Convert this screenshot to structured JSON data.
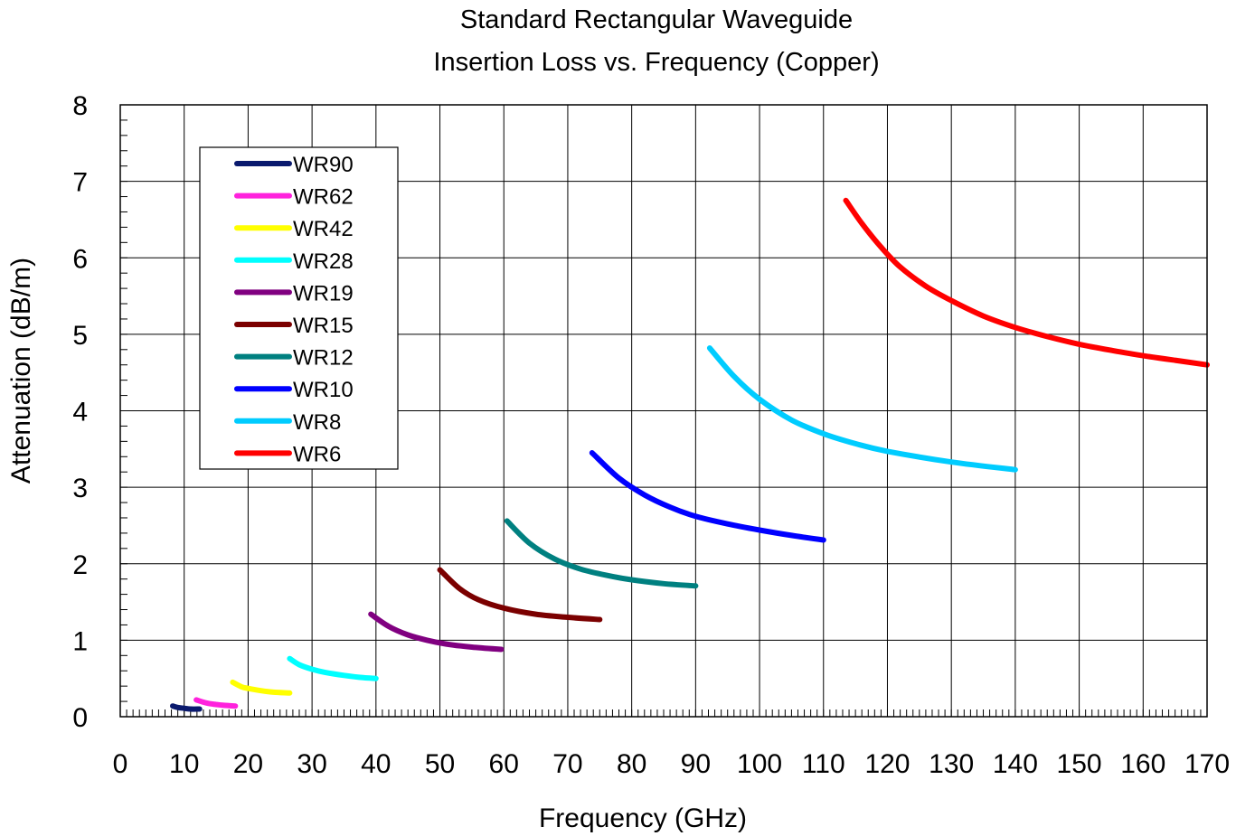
{
  "chart_data": {
    "type": "line",
    "title": "Standard Rectangular Waveguide",
    "subtitle": "Insertion Loss vs. Frequency (Copper)",
    "xlabel": "Frequency (GHz)",
    "ylabel": "Attenuation (dB/m)",
    "xlim": [
      0,
      170
    ],
    "ylim": [
      0,
      8
    ],
    "x_major_ticks": [
      "0",
      "10",
      "20",
      "30",
      "40",
      "50",
      "60",
      "70",
      "80",
      "90",
      "100",
      "110",
      "120",
      "130",
      "140",
      "150",
      "160",
      "170"
    ],
    "y_major_ticks": [
      "0",
      "1",
      "2",
      "3",
      "4",
      "5",
      "6",
      "7",
      "8"
    ],
    "x_minor_step": 1,
    "y_minor_step": 0.2,
    "grid": true,
    "legend_position": "top-left",
    "series": [
      {
        "name": "WR90",
        "color": "#0a1a6e",
        "x": [
          8.2,
          9,
          10,
          11,
          12.4
        ],
        "y": [
          0.14,
          0.12,
          0.11,
          0.1,
          0.1
        ]
      },
      {
        "name": "WR62",
        "color": "#ff22dd",
        "x": [
          11.9,
          13,
          14,
          15,
          16,
          18
        ],
        "y": [
          0.22,
          0.19,
          0.17,
          0.16,
          0.15,
          0.14
        ]
      },
      {
        "name": "WR42",
        "color": "#ffff00",
        "x": [
          17.6,
          19,
          20,
          22,
          24,
          26.5
        ],
        "y": [
          0.45,
          0.39,
          0.37,
          0.34,
          0.32,
          0.31
        ]
      },
      {
        "name": "WR28",
        "color": "#00ffff",
        "x": [
          26.5,
          28,
          30,
          32,
          35,
          38,
          40
        ],
        "y": [
          0.76,
          0.68,
          0.62,
          0.58,
          0.54,
          0.51,
          0.5
        ]
      },
      {
        "name": "WR19",
        "color": "#800080",
        "x": [
          39.2,
          42,
          45,
          48,
          51,
          55,
          59.6
        ],
        "y": [
          1.34,
          1.18,
          1.07,
          1.0,
          0.95,
          0.91,
          0.88
        ]
      },
      {
        "name": "WR15",
        "color": "#7b0000",
        "x": [
          50,
          53,
          56,
          60,
          65,
          70,
          75
        ],
        "y": [
          1.92,
          1.68,
          1.53,
          1.42,
          1.34,
          1.3,
          1.27
        ]
      },
      {
        "name": "WR12",
        "color": "#008080",
        "x": [
          60.5,
          64,
          68,
          72,
          76,
          80,
          85,
          90
        ],
        "y": [
          2.56,
          2.27,
          2.06,
          1.93,
          1.85,
          1.79,
          1.74,
          1.71
        ]
      },
      {
        "name": "WR10",
        "color": "#0000ff",
        "x": [
          73.8,
          78,
          82,
          86,
          90,
          95,
          100,
          105,
          110
        ],
        "y": [
          3.45,
          3.12,
          2.9,
          2.74,
          2.62,
          2.52,
          2.44,
          2.37,
          2.31
        ]
      },
      {
        "name": "WR8",
        "color": "#00ccff",
        "x": [
          92.2,
          96,
          100,
          105,
          110,
          115,
          120,
          130,
          140
        ],
        "y": [
          4.82,
          4.45,
          4.15,
          3.88,
          3.7,
          3.57,
          3.47,
          3.33,
          3.23
        ]
      },
      {
        "name": "WR6",
        "color": "#ff0000",
        "x": [
          113.5,
          116,
          119,
          122,
          126,
          130,
          135,
          140,
          145,
          150,
          155,
          160,
          165,
          170
        ],
        "y": [
          6.75,
          6.45,
          6.14,
          5.88,
          5.63,
          5.44,
          5.24,
          5.09,
          4.97,
          4.87,
          4.79,
          4.72,
          4.66,
          4.6
        ]
      }
    ]
  }
}
